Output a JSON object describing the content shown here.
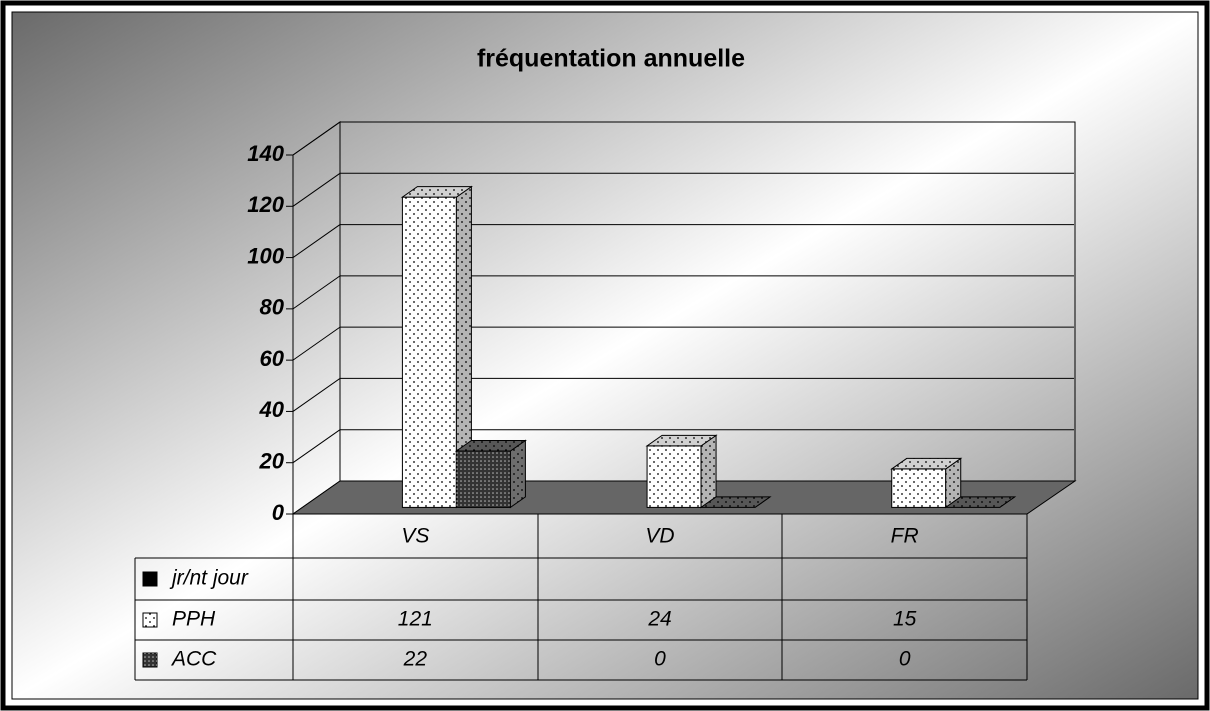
{
  "chart_data": {
    "type": "bar3d",
    "title": "fréquentation annuelle",
    "categories": [
      "VS",
      "VD",
      "FR"
    ],
    "series": [
      {
        "name": "jr/nt jour",
        "color": "#000000",
        "values": [
          null,
          null,
          null
        ]
      },
      {
        "name": "PPH",
        "color": "#ffffff",
        "values": [
          121,
          24,
          15
        ]
      },
      {
        "name": "ACC",
        "color": "#333333",
        "values": [
          22,
          0,
          0
        ]
      }
    ],
    "ylim": [
      0,
      140
    ],
    "yticks": [
      0,
      20,
      40,
      60,
      80,
      100,
      120,
      140
    ],
    "grid": true,
    "data_table": true
  }
}
